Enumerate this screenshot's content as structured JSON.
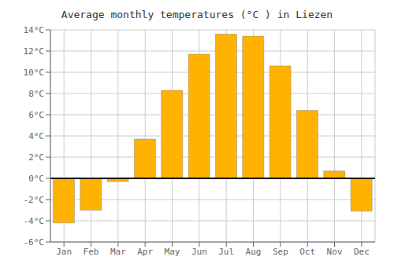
{
  "chart_data": {
    "type": "bar",
    "title": "Average monthly temperatures (°C ) in Liezen",
    "categories": [
      "Jan",
      "Feb",
      "Mar",
      "Apr",
      "May",
      "Jun",
      "Jul",
      "Aug",
      "Sep",
      "Oct",
      "Nov",
      "Dec"
    ],
    "values": [
      -4.2,
      -3.0,
      -0.3,
      3.7,
      8.3,
      11.7,
      13.6,
      13.4,
      10.6,
      6.4,
      0.7,
      -3.1
    ],
    "color": "#FFB300",
    "ylim": [
      -6,
      14
    ],
    "yticks": [
      {
        "value": -6,
        "label": "-6°C"
      },
      {
        "value": -4,
        "label": "-4°C"
      },
      {
        "value": -2,
        "label": "-2°C"
      },
      {
        "value": 0,
        "label": "0°C"
      },
      {
        "value": 2,
        "label": "2°C"
      },
      {
        "value": 4,
        "label": "4°C"
      },
      {
        "value": 6,
        "label": "6°C"
      },
      {
        "value": 8,
        "label": "8°C"
      },
      {
        "value": 10,
        "label": "10°C"
      },
      {
        "value": 12,
        "label": "12°C"
      },
      {
        "value": 14,
        "label": "14°C"
      }
    ],
    "grid": true
  }
}
